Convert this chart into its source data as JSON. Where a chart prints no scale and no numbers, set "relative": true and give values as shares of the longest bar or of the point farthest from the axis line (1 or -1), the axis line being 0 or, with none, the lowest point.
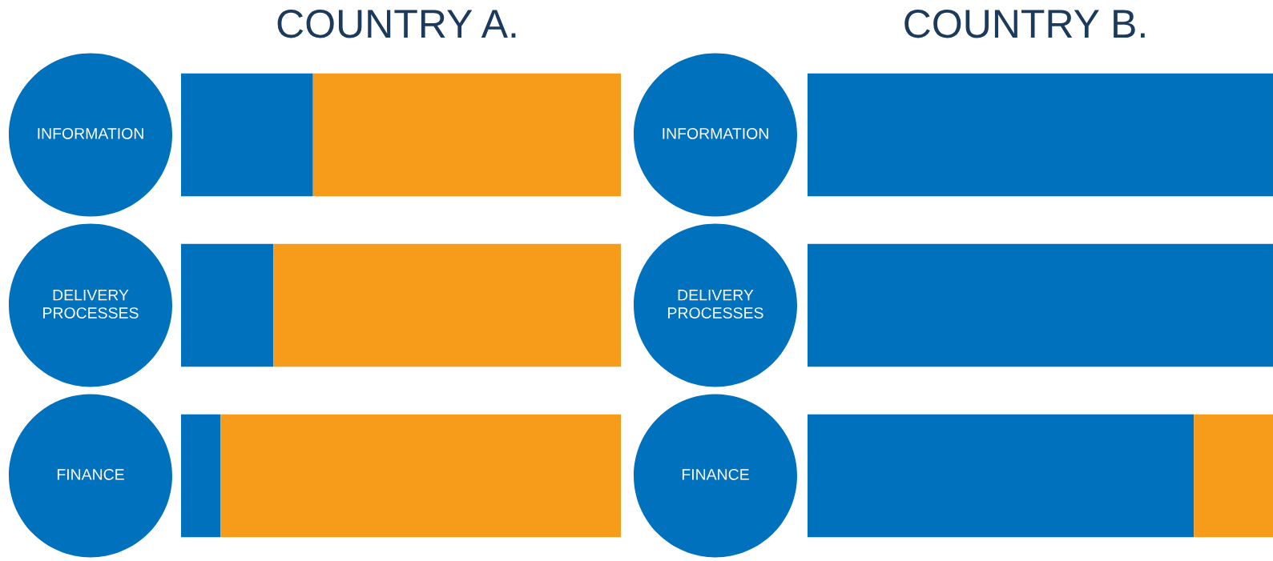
{
  "chart_data": [
    {
      "type": "bar",
      "title": "COUNTRY A.",
      "orientation": "horizontal",
      "stacked": true,
      "relative": true,
      "categories": [
        "INFORMATION",
        "DELIVERY\nPROCESSES",
        "FINANCE"
      ],
      "series": [
        {
          "color": "#0071bc",
          "values": [
            0.3,
            0.21,
            0.09
          ]
        },
        {
          "color": "#f79b1b",
          "values": [
            0.7,
            0.79,
            0.91
          ]
        }
      ]
    },
    {
      "type": "bar",
      "title": "COUNTRY B.",
      "orientation": "horizontal",
      "stacked": true,
      "relative": true,
      "categories": [
        "INFORMATION",
        "DELIVERY\nPROCESSES",
        "FINANCE"
      ],
      "series": [
        {
          "color": "#0071bc",
          "values": [
            1,
            1,
            0.83
          ]
        },
        {
          "color": "#f79b1b",
          "values": [
            null,
            null,
            0.17
          ]
        }
      ]
    }
  ]
}
